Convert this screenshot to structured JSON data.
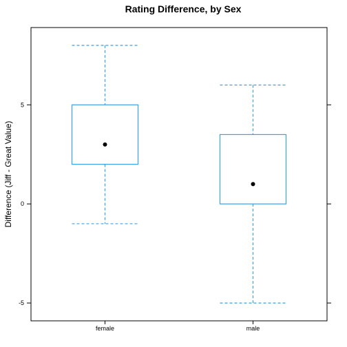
{
  "chart_data": {
    "type": "boxplot",
    "title": "Rating Difference, by Sex",
    "xlabel": "",
    "ylabel": "Difference (Jiff - Great Value)",
    "categories": [
      "female",
      "male"
    ],
    "boxes": [
      {
        "category": "female",
        "min": -1,
        "q1": 2,
        "median": 3,
        "q3": 5,
        "max": 8
      },
      {
        "category": "male",
        "min": -5,
        "q1": 0,
        "median": 1,
        "q3": 3.5,
        "max": 6
      }
    ],
    "y_ticks": [
      -5,
      0,
      5
    ],
    "ylim": [
      -5.9,
      8.9
    ],
    "grid": false,
    "colors": {
      "box": "#3a9fe6",
      "median_dot": "#000000",
      "frame": "#000000"
    }
  }
}
